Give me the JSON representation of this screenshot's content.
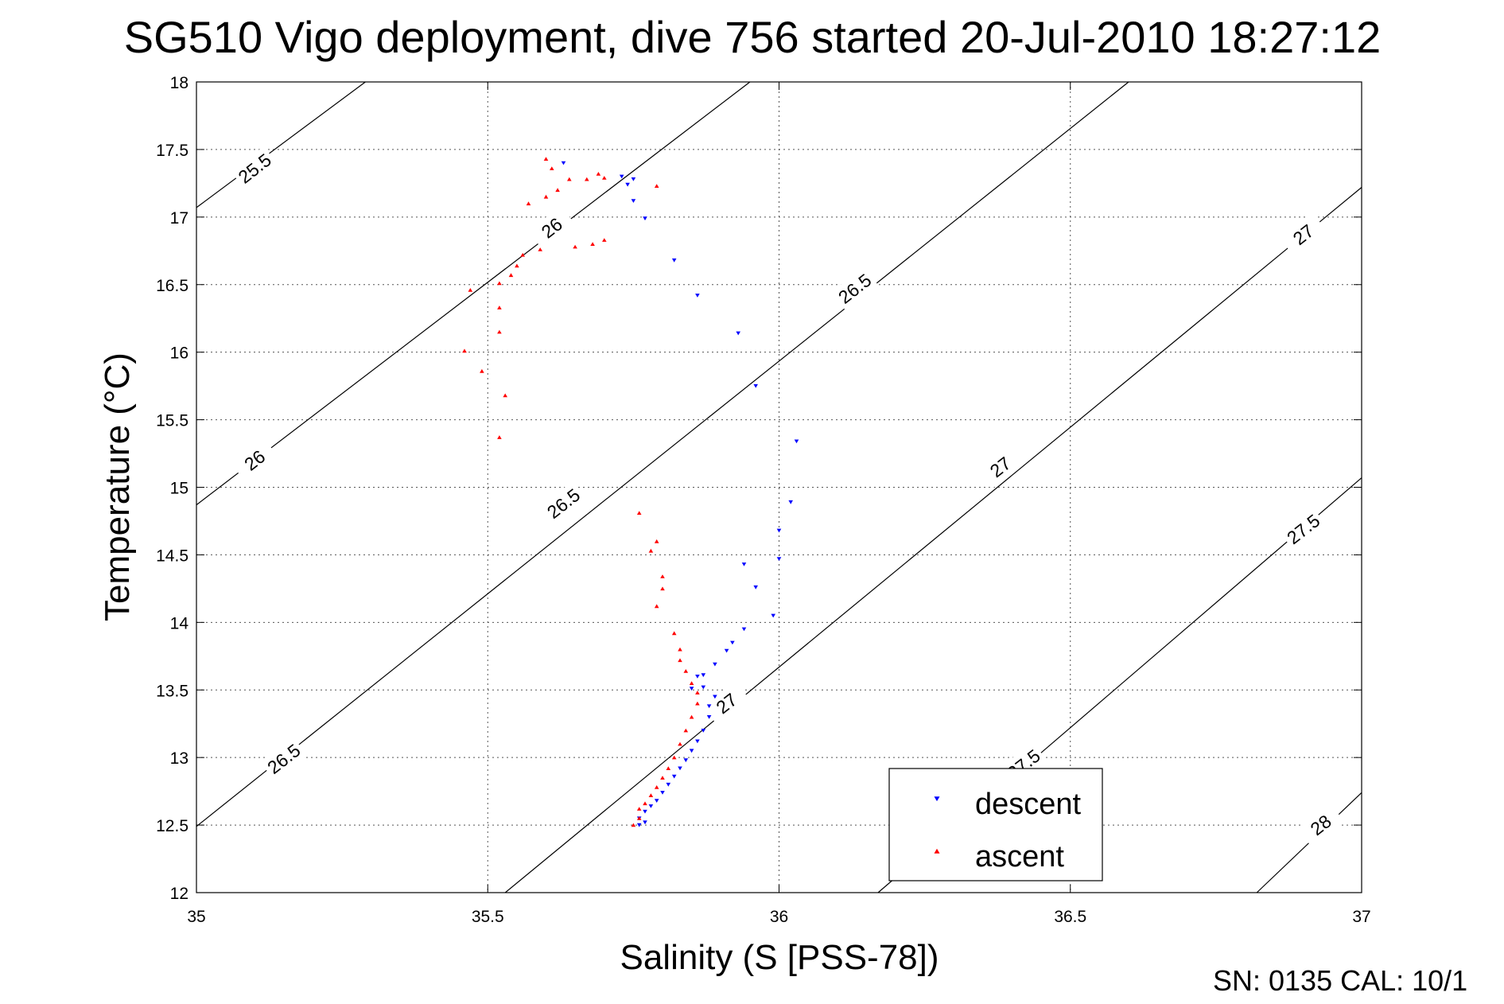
{
  "chart_data": {
    "type": "scatter",
    "title": "SG510 Vigo deployment, dive 756 started 20-Jul-2010 18:27:12",
    "xlabel": "Salinity (S [PSS-78])",
    "ylabel": "Temperature (°C)",
    "xlim": [
      35,
      37
    ],
    "ylim": [
      12,
      18
    ],
    "x_ticks": [
      35,
      35.5,
      36,
      36.5,
      37
    ],
    "x_tick_labels": [
      "35",
      "35.5",
      "36",
      "36.5",
      "37"
    ],
    "y_ticks": [
      12,
      12.5,
      13,
      13.5,
      14,
      14.5,
      15,
      15.5,
      16,
      16.5,
      17,
      17.5,
      18
    ],
    "y_tick_labels": [
      "12",
      "12.5",
      "13",
      "13.5",
      "14",
      "14.5",
      "15",
      "15.5",
      "16",
      "16.5",
      "17",
      "17.5",
      "18"
    ],
    "grid": true,
    "legend_position": "bottom-right",
    "density_contours": [
      {
        "label": "25.5",
        "points": [
          [
            35.0,
            17.07
          ],
          [
            35.29,
            18.0
          ]
        ]
      },
      {
        "label": "26",
        "points": [
          [
            35.0,
            14.87
          ],
          [
            35.95,
            18.0
          ]
        ]
      },
      {
        "label": "26.5",
        "points": [
          [
            35.0,
            12.49
          ],
          [
            36.6,
            18.0
          ]
        ]
      },
      {
        "label": "27",
        "points": [
          [
            35.53,
            12.0
          ],
          [
            37.0,
            17.22
          ]
        ]
      },
      {
        "label": "27.5",
        "points": [
          [
            36.17,
            12.0
          ],
          [
            37.0,
            15.07
          ]
        ]
      },
      {
        "label": "28",
        "points": [
          [
            36.82,
            12.0
          ],
          [
            37.0,
            12.74
          ]
        ]
      }
    ],
    "contour_labels": [
      {
        "text": "25.5",
        "x": 35.1,
        "y": 17.36
      },
      {
        "text": "26",
        "x": 35.1,
        "y": 15.2
      },
      {
        "text": "26",
        "x": 35.61,
        "y": 16.92
      },
      {
        "text": "26.5",
        "x": 35.15,
        "y": 12.99
      },
      {
        "text": "26.5",
        "x": 35.63,
        "y": 14.88
      },
      {
        "text": "26.5",
        "x": 36.13,
        "y": 16.47
      },
      {
        "text": "27",
        "x": 35.91,
        "y": 13.4
      },
      {
        "text": "27",
        "x": 36.38,
        "y": 15.15
      },
      {
        "text": "27",
        "x": 36.9,
        "y": 16.87
      },
      {
        "text": "27.5",
        "x": 36.42,
        "y": 12.95
      },
      {
        "text": "27.5",
        "x": 36.9,
        "y": 14.69
      },
      {
        "text": "28",
        "x": 36.93,
        "y": 12.5
      }
    ],
    "series": [
      {
        "name": "descent",
        "color": "#0000ff",
        "marker": "triangle-down",
        "points": [
          [
            35.63,
            17.4
          ],
          [
            35.73,
            17.3
          ],
          [
            35.75,
            17.28
          ],
          [
            35.74,
            17.24
          ],
          [
            35.75,
            17.12
          ],
          [
            35.77,
            16.99
          ],
          [
            35.82,
            16.68
          ],
          [
            35.86,
            16.42
          ],
          [
            35.93,
            16.14
          ],
          [
            35.96,
            15.75
          ],
          [
            36.03,
            15.34
          ],
          [
            36.02,
            14.89
          ],
          [
            36.0,
            14.68
          ],
          [
            36.0,
            14.47
          ],
          [
            35.94,
            14.43
          ],
          [
            35.96,
            14.26
          ],
          [
            35.99,
            14.05
          ],
          [
            35.94,
            13.95
          ],
          [
            35.92,
            13.85
          ],
          [
            35.91,
            13.79
          ],
          [
            35.89,
            13.69
          ],
          [
            35.87,
            13.61
          ],
          [
            35.86,
            13.6
          ],
          [
            35.85,
            13.51
          ],
          [
            35.87,
            13.52
          ],
          [
            35.89,
            13.45
          ],
          [
            35.88,
            13.38
          ],
          [
            35.88,
            13.3
          ],
          [
            35.87,
            13.2
          ],
          [
            35.86,
            13.12
          ],
          [
            35.85,
            13.05
          ],
          [
            35.84,
            12.98
          ],
          [
            35.83,
            12.92
          ],
          [
            35.82,
            12.86
          ],
          [
            35.81,
            12.8
          ],
          [
            35.8,
            12.74
          ],
          [
            35.79,
            12.68
          ],
          [
            35.78,
            12.64
          ],
          [
            35.77,
            12.6
          ],
          [
            35.76,
            12.55
          ],
          [
            35.77,
            12.52
          ],
          [
            35.76,
            12.5
          ]
        ]
      },
      {
        "name": "ascent",
        "color": "#ff0000",
        "marker": "triangle-up",
        "points": [
          [
            35.6,
            17.43
          ],
          [
            35.61,
            17.36
          ],
          [
            35.62,
            17.2
          ],
          [
            35.6,
            17.15
          ],
          [
            35.64,
            17.28
          ],
          [
            35.67,
            17.28
          ],
          [
            35.69,
            17.32
          ],
          [
            35.7,
            17.29
          ],
          [
            35.79,
            17.23
          ],
          [
            35.57,
            17.1
          ],
          [
            35.59,
            16.76
          ],
          [
            35.65,
            16.78
          ],
          [
            35.68,
            16.8
          ],
          [
            35.7,
            16.83
          ],
          [
            35.56,
            16.72
          ],
          [
            35.55,
            16.64
          ],
          [
            35.54,
            16.57
          ],
          [
            35.52,
            16.51
          ],
          [
            35.47,
            16.46
          ],
          [
            35.52,
            16.33
          ],
          [
            35.52,
            16.15
          ],
          [
            35.46,
            16.01
          ],
          [
            35.49,
            15.86
          ],
          [
            35.53,
            15.68
          ],
          [
            35.52,
            15.37
          ],
          [
            35.76,
            14.81
          ],
          [
            35.79,
            14.6
          ],
          [
            35.78,
            14.53
          ],
          [
            35.8,
            14.34
          ],
          [
            35.8,
            14.25
          ],
          [
            35.79,
            14.12
          ],
          [
            35.82,
            13.92
          ],
          [
            35.83,
            13.8
          ],
          [
            35.83,
            13.72
          ],
          [
            35.84,
            13.64
          ],
          [
            35.85,
            13.55
          ],
          [
            35.86,
            13.48
          ],
          [
            35.86,
            13.4
          ],
          [
            35.85,
            13.3
          ],
          [
            35.84,
            13.2
          ],
          [
            35.83,
            13.1
          ],
          [
            35.82,
            13.0
          ],
          [
            35.81,
            12.92
          ],
          [
            35.8,
            12.85
          ],
          [
            35.79,
            12.78
          ],
          [
            35.78,
            12.72
          ],
          [
            35.77,
            12.66
          ],
          [
            35.76,
            12.62
          ],
          [
            35.76,
            12.55
          ],
          [
            35.75,
            12.5
          ]
        ]
      }
    ],
    "footer_text": "SN: 0135  CAL: 10/1"
  }
}
